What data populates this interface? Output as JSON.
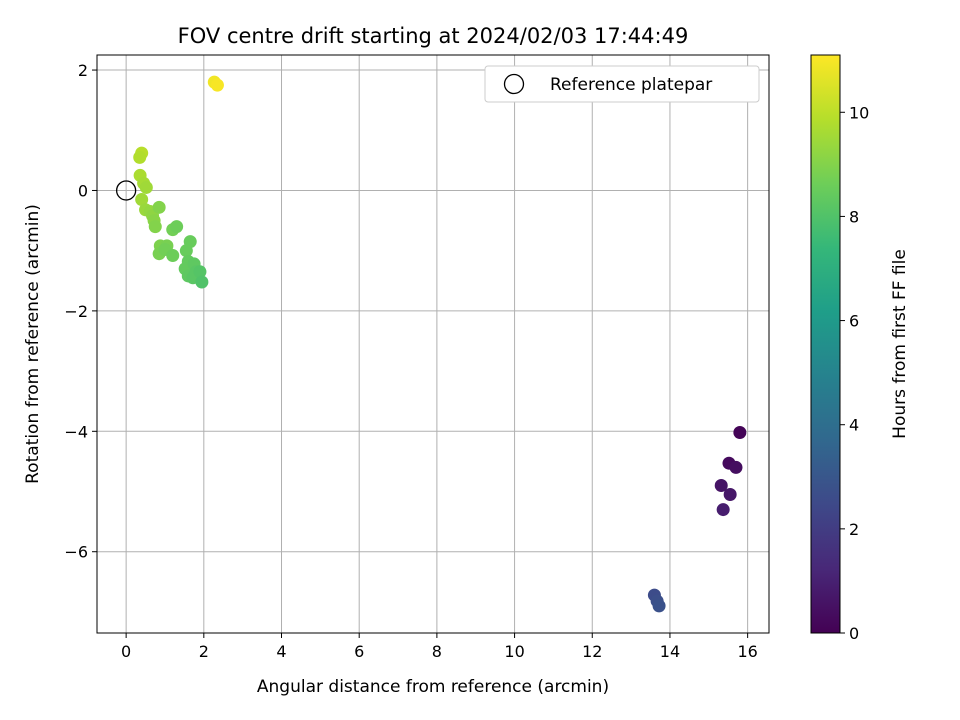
{
  "chart_data": {
    "type": "scatter",
    "title": "FOV centre drift starting at 2024/02/03 17:44:49",
    "xlabel": "Angular distance from reference (arcmin)",
    "ylabel": "Rotation from reference (arcmin)",
    "xlim": [
      -0.75,
      16.55
    ],
    "ylim": [
      -7.35,
      2.25
    ],
    "xticks": [
      0,
      2,
      4,
      6,
      8,
      10,
      12,
      14,
      16
    ],
    "yticks": [
      -6,
      -4,
      -2,
      0,
      2
    ],
    "grid": true,
    "legend": {
      "placement": "top-right",
      "label": "Reference platepar"
    },
    "reference_point": {
      "x": 0,
      "y": 0
    },
    "colorbar": {
      "label": "Hours from first FF file",
      "range": [
        0,
        11.1
      ],
      "ticks": [
        0,
        2,
        4,
        6,
        8,
        10
      ],
      "colormap": [
        "#440154",
        "#482878",
        "#3e4989",
        "#31688e",
        "#26828e",
        "#1f9e89",
        "#35b779",
        "#6ece58",
        "#b5de2b",
        "#fde725"
      ]
    },
    "points": [
      {
        "x": 15.8,
        "y": -4.02,
        "c": 0.1
      },
      {
        "x": 15.52,
        "y": -4.53,
        "c": 0.3
      },
      {
        "x": 15.7,
        "y": -4.6,
        "c": 0.4
      },
      {
        "x": 15.32,
        "y": -4.9,
        "c": 0.6
      },
      {
        "x": 15.55,
        "y": -5.05,
        "c": 0.7
      },
      {
        "x": 15.37,
        "y": -5.3,
        "c": 0.9
      },
      {
        "x": 13.6,
        "y": -6.72,
        "c": 2.6
      },
      {
        "x": 13.67,
        "y": -6.82,
        "c": 2.7
      },
      {
        "x": 13.72,
        "y": -6.9,
        "c": 2.8
      },
      {
        "x": 0.4,
        "y": 0.62,
        "c": 9.9
      },
      {
        "x": 0.35,
        "y": 0.55,
        "c": 9.8
      },
      {
        "x": 0.36,
        "y": 0.25,
        "c": 9.7
      },
      {
        "x": 0.45,
        "y": 0.12,
        "c": 9.6
      },
      {
        "x": 0.52,
        "y": 0.05,
        "c": 9.5
      },
      {
        "x": 0.4,
        "y": -0.15,
        "c": 9.5
      },
      {
        "x": 0.5,
        "y": -0.32,
        "c": 9.4
      },
      {
        "x": 0.62,
        "y": -0.35,
        "c": 9.3
      },
      {
        "x": 0.68,
        "y": -0.42,
        "c": 9.2
      },
      {
        "x": 0.72,
        "y": -0.5,
        "c": 9.1
      },
      {
        "x": 0.75,
        "y": -0.6,
        "c": 9.0
      },
      {
        "x": 0.85,
        "y": -0.28,
        "c": 9.0
      },
      {
        "x": 0.88,
        "y": -0.92,
        "c": 8.9
      },
      {
        "x": 0.85,
        "y": -1.05,
        "c": 8.8
      },
      {
        "x": 1.05,
        "y": -0.92,
        "c": 8.8
      },
      {
        "x": 1.0,
        "y": -0.98,
        "c": 8.7
      },
      {
        "x": 1.2,
        "y": -0.65,
        "c": 8.7
      },
      {
        "x": 1.3,
        "y": -0.6,
        "c": 8.6
      },
      {
        "x": 1.2,
        "y": -1.08,
        "c": 8.6
      },
      {
        "x": 1.55,
        "y": -1.0,
        "c": 8.5
      },
      {
        "x": 1.65,
        "y": -0.85,
        "c": 8.5
      },
      {
        "x": 1.6,
        "y": -1.18,
        "c": 8.4
      },
      {
        "x": 1.52,
        "y": -1.3,
        "c": 8.4
      },
      {
        "x": 1.6,
        "y": -1.42,
        "c": 8.3
      },
      {
        "x": 1.75,
        "y": -1.22,
        "c": 8.3
      },
      {
        "x": 1.8,
        "y": -1.35,
        "c": 8.2
      },
      {
        "x": 1.72,
        "y": -1.45,
        "c": 8.2
      },
      {
        "x": 1.9,
        "y": -1.35,
        "c": 8.1
      },
      {
        "x": 1.95,
        "y": -1.52,
        "c": 8.0
      },
      {
        "x": 2.27,
        "y": 1.8,
        "c": 10.9
      },
      {
        "x": 2.35,
        "y": 1.75,
        "c": 11.0
      }
    ]
  }
}
